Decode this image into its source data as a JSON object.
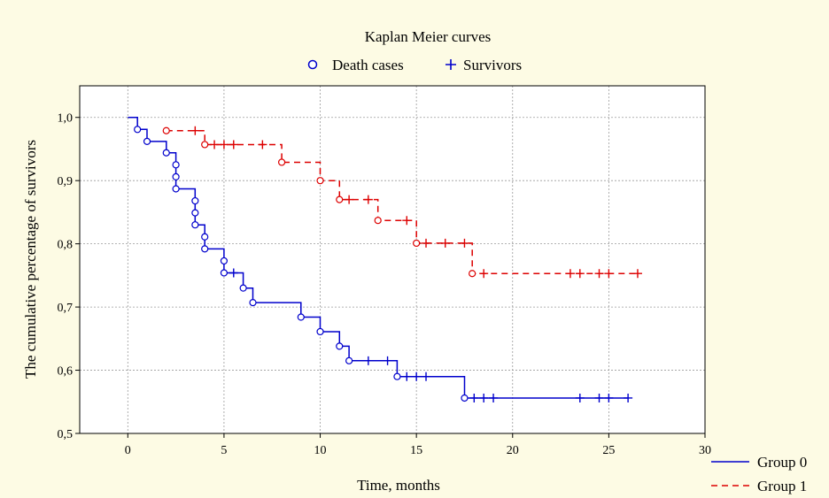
{
  "chart_data": {
    "type": "line",
    "subtype": "kaplan-meier-step",
    "title": "Kaplan Meier curves",
    "xlabel": "Time, months",
    "ylabel": "The cumulative percentage of survivors",
    "xlim": [
      -2.5,
      30
    ],
    "ylim": [
      0.5,
      1.05
    ],
    "x_ticks": [
      0,
      5,
      10,
      15,
      20,
      25,
      30
    ],
    "y_ticks": [
      0.5,
      0.6,
      0.7,
      0.8,
      0.9,
      1.0
    ],
    "y_tick_labels": [
      "0,5",
      "0,6",
      "0,7",
      "0,8",
      "0,9",
      "1,0"
    ],
    "grid": "dotted",
    "marker_legend": [
      {
        "label": "Death cases",
        "marker": "circle"
      },
      {
        "label": "Survivors",
        "marker": "plus"
      }
    ],
    "series": [
      {
        "name": "Group 0",
        "color": "#0000cc",
        "dash": "solid",
        "steps": [
          [
            0,
            1.0
          ],
          [
            0.5,
            0.981
          ],
          [
            1,
            0.962
          ],
          [
            2,
            0.944
          ],
          [
            2.5,
            0.887
          ],
          [
            3.5,
            0.83
          ],
          [
            4,
            0.792
          ],
          [
            5,
            0.754
          ],
          [
            6,
            0.73
          ],
          [
            6.5,
            0.707
          ],
          [
            9,
            0.684
          ],
          [
            10,
            0.661
          ],
          [
            11,
            0.638
          ],
          [
            11.5,
            0.615
          ],
          [
            14,
            0.59
          ],
          [
            17.5,
            0.556
          ],
          [
            26,
            0.556
          ]
        ],
        "deaths": [
          [
            0.5,
            0.981
          ],
          [
            1,
            0.962
          ],
          [
            2,
            0.944
          ],
          [
            2.5,
            0.925
          ],
          [
            2.5,
            0.906
          ],
          [
            2.5,
            0.887
          ],
          [
            3.5,
            0.868
          ],
          [
            3.5,
            0.849
          ],
          [
            3.5,
            0.83
          ],
          [
            4,
            0.811
          ],
          [
            4,
            0.792
          ],
          [
            5,
            0.773
          ],
          [
            5,
            0.754
          ],
          [
            6,
            0.73
          ],
          [
            6.5,
            0.707
          ],
          [
            9,
            0.684
          ],
          [
            10,
            0.661
          ],
          [
            11,
            0.638
          ],
          [
            11.5,
            0.615
          ],
          [
            14,
            0.59
          ],
          [
            17.5,
            0.556
          ]
        ],
        "censored": [
          [
            5.5,
            0.754
          ],
          [
            12.5,
            0.615
          ],
          [
            13.5,
            0.615
          ],
          [
            14.5,
            0.59
          ],
          [
            15,
            0.59
          ],
          [
            15.5,
            0.59
          ],
          [
            18,
            0.556
          ],
          [
            18.5,
            0.556
          ],
          [
            19,
            0.556
          ],
          [
            23.5,
            0.556
          ],
          [
            24.5,
            0.556
          ],
          [
            25,
            0.556
          ],
          [
            26,
            0.556
          ]
        ]
      },
      {
        "name": "Group 1",
        "color": "#dd0000",
        "dash": "dashed",
        "steps": [
          [
            2,
            0.979
          ],
          [
            4,
            0.957
          ],
          [
            8,
            0.929
          ],
          [
            10,
            0.9
          ],
          [
            11,
            0.87
          ],
          [
            13,
            0.837
          ],
          [
            15,
            0.801
          ],
          [
            17.9,
            0.753
          ],
          [
            26.5,
            0.753
          ]
        ],
        "deaths": [
          [
            2,
            0.979
          ],
          [
            4,
            0.957
          ],
          [
            8,
            0.929
          ],
          [
            10,
            0.9
          ],
          [
            11,
            0.87
          ],
          [
            13,
            0.837
          ],
          [
            15,
            0.801
          ],
          [
            17.9,
            0.753
          ]
        ],
        "censored": [
          [
            3.5,
            0.979
          ],
          [
            4.5,
            0.957
          ],
          [
            5,
            0.957
          ],
          [
            5.5,
            0.957
          ],
          [
            7,
            0.957
          ],
          [
            11.5,
            0.87
          ],
          [
            12.5,
            0.87
          ],
          [
            14.5,
            0.837
          ],
          [
            15.5,
            0.801
          ],
          [
            16.5,
            0.801
          ],
          [
            17.5,
            0.801
          ],
          [
            18.5,
            0.753
          ],
          [
            23,
            0.753
          ],
          [
            23.5,
            0.753
          ],
          [
            24.5,
            0.753
          ],
          [
            25,
            0.753
          ],
          [
            26.5,
            0.753
          ]
        ]
      }
    ]
  }
}
